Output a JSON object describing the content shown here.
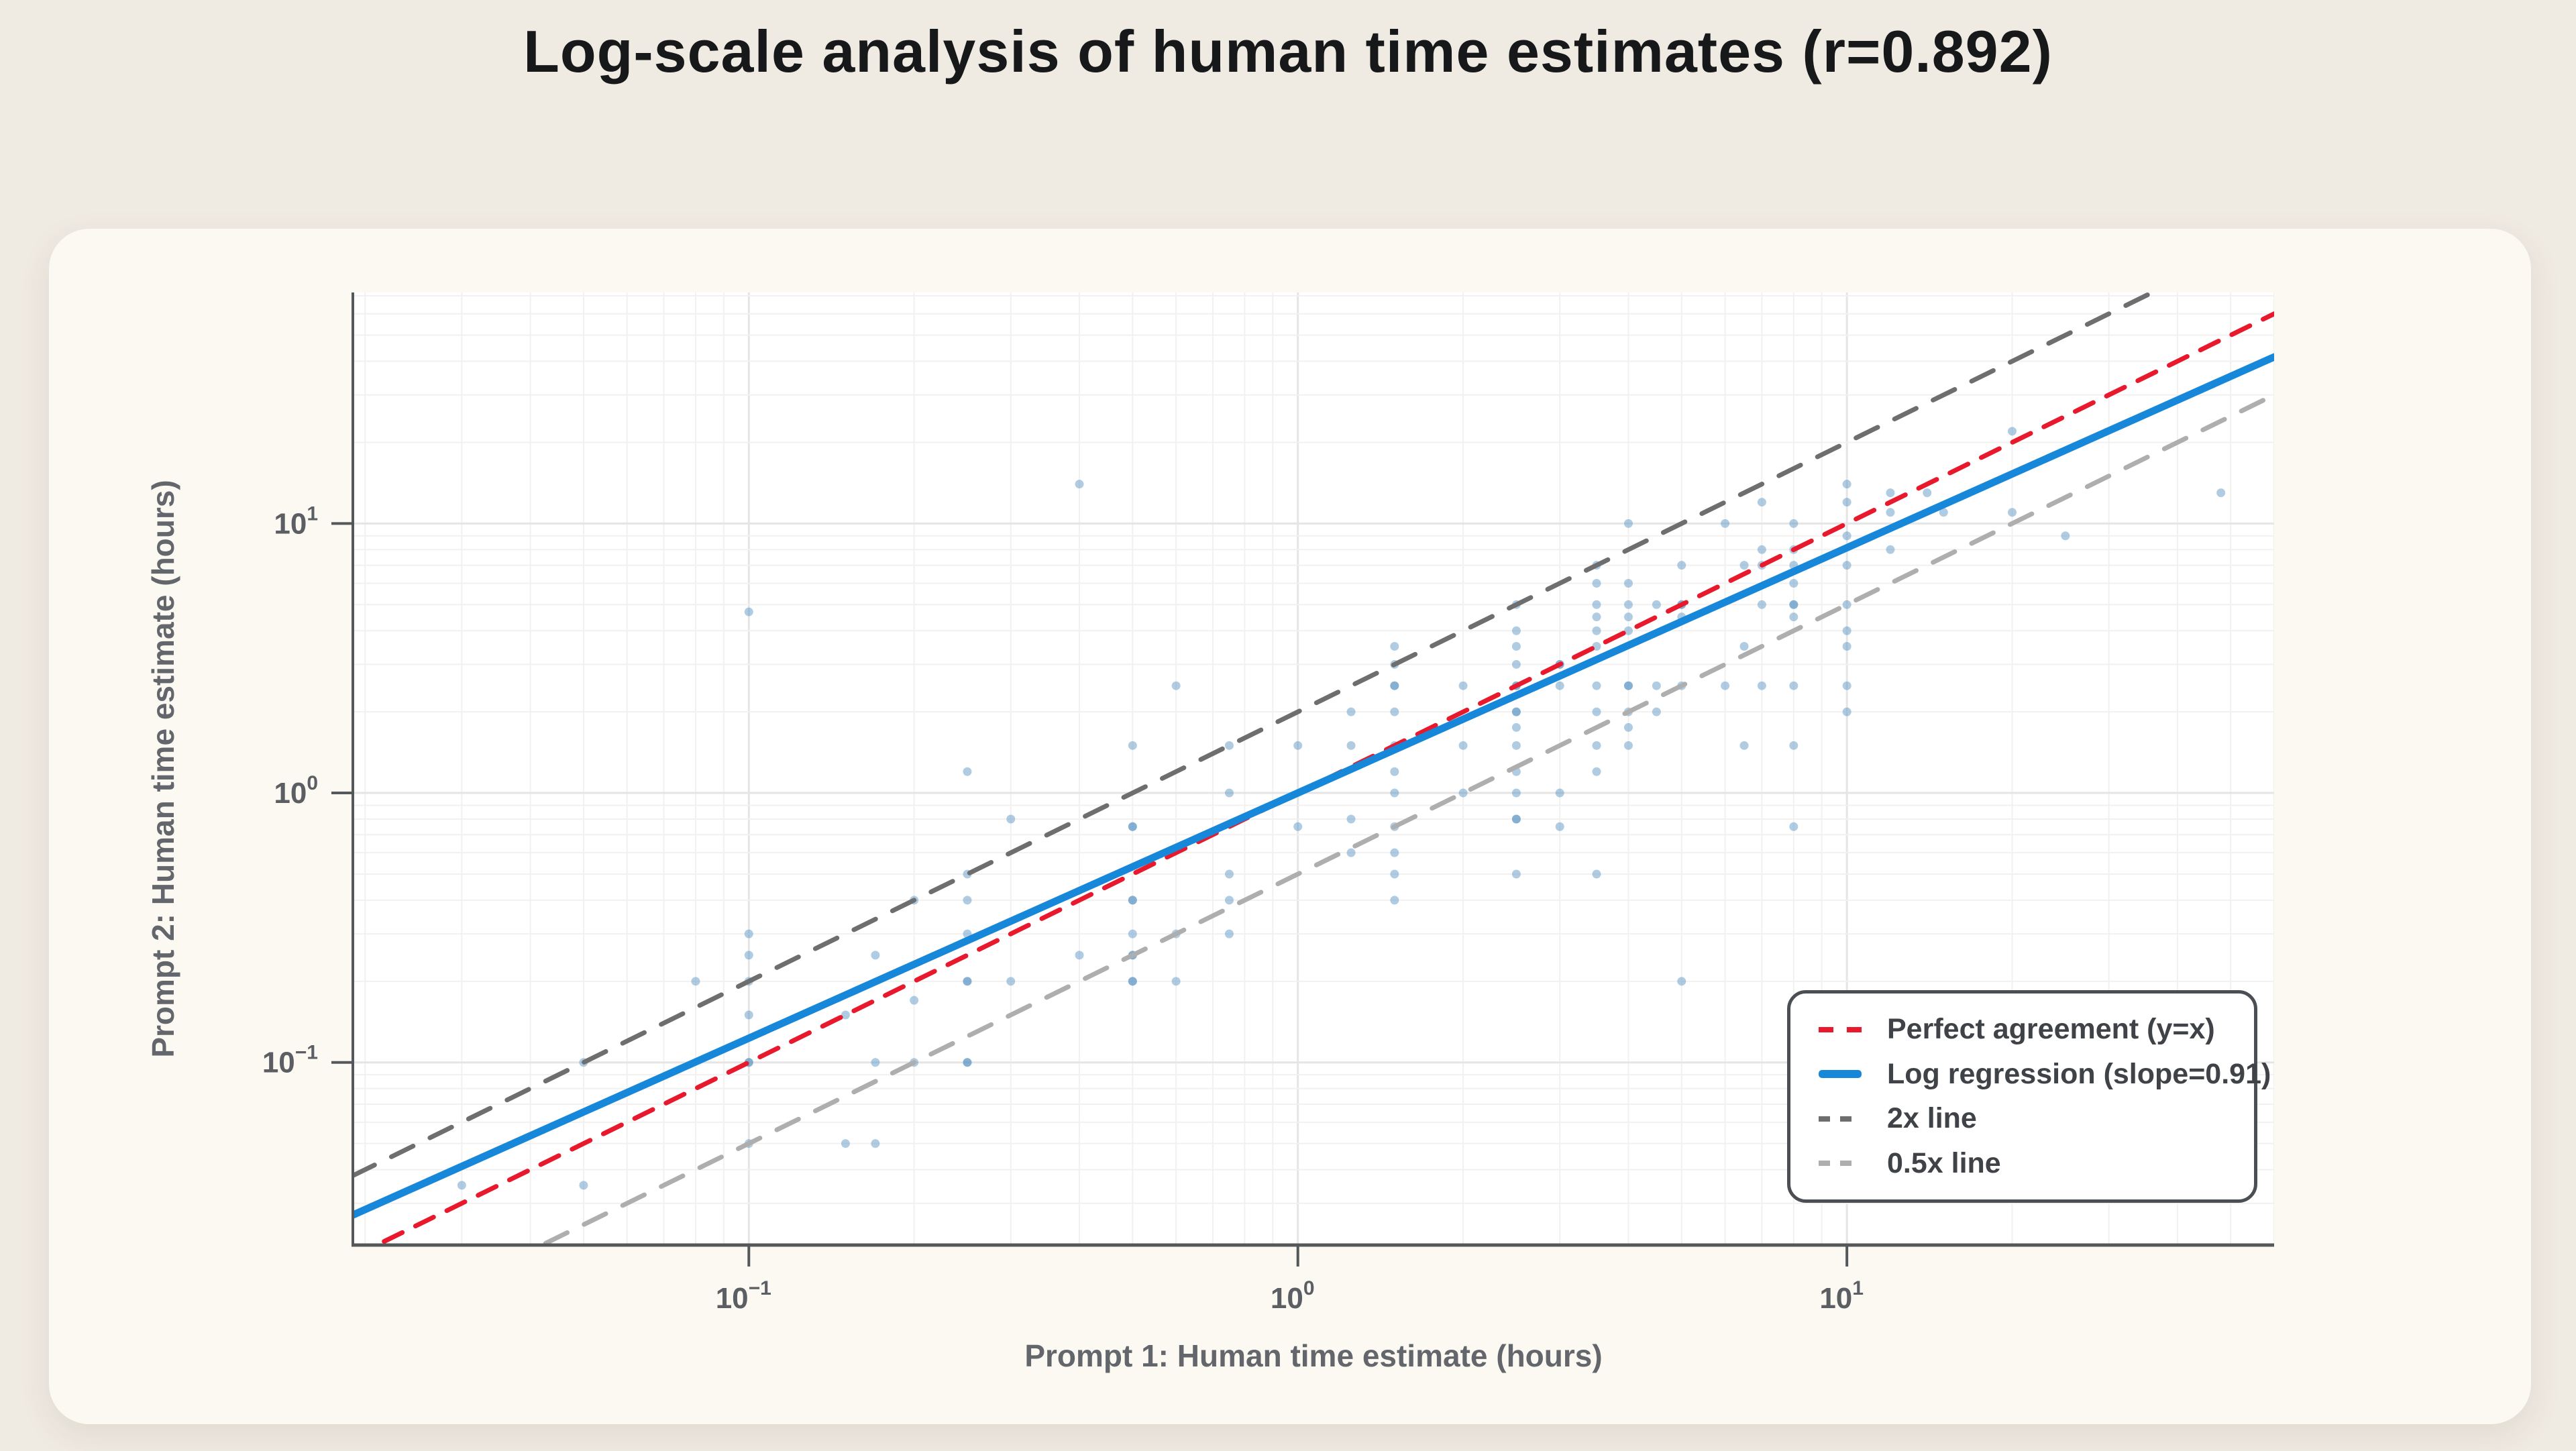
{
  "title": "Log-scale analysis of human time estimates (r=0.892)",
  "chart_data": {
    "type": "scatter",
    "title": "Log-scale analysis of human time estimates (r=0.892)",
    "xlabel": "Prompt 1: Human time estimate (hours)",
    "ylabel": "Prompt 2: Human time estimate (hours)",
    "x_scale": "log",
    "y_scale": "log",
    "xlim": [
      0.019,
      60
    ],
    "ylim": [
      0.021,
      72
    ],
    "x_tick_exponents": [
      -1,
      0,
      1
    ],
    "y_tick_exponents": [
      -1,
      0,
      1
    ],
    "grid": true,
    "correlation_r": 0.892,
    "regression_slope": 0.91,
    "point_style": {
      "color": "#4F8DC2",
      "opacity": 0.45,
      "radius": 6.5
    },
    "legend_position": "lower right",
    "lines": [
      {
        "name": "perfect-agreement",
        "label": "Perfect agreement (y=x)",
        "type": "proportional",
        "k": 1,
        "color": "#E8192C",
        "dash": "30,22",
        "width": 7
      },
      {
        "name": "log-regression",
        "label": "Log regression (slope=0.91)",
        "type": "power",
        "slope": 0.91,
        "intercept": 0,
        "color": "#1787D9",
        "dash": null,
        "width": 11
      },
      {
        "name": "2x-line",
        "label": "2x line",
        "type": "proportional",
        "k": 2,
        "color": "#6E6E6E",
        "dash": "36,28",
        "width": 7
      },
      {
        "name": "half-x-line",
        "label": "0.5x line",
        "type": "proportional",
        "k": 0.5,
        "color": "#AEAEAE",
        "dash": "36,28",
        "width": 7
      }
    ],
    "points": [
      [
        0.03,
        0.035
      ],
      [
        0.05,
        0.035
      ],
      [
        0.05,
        0.1
      ],
      [
        0.08,
        0.2
      ],
      [
        0.1,
        0.05
      ],
      [
        0.1,
        0.1
      ],
      [
        0.1,
        0.1
      ],
      [
        0.1,
        0.15
      ],
      [
        0.1,
        0.2
      ],
      [
        0.1,
        0.25
      ],
      [
        0.1,
        0.3
      ],
      [
        0.1,
        4.7
      ],
      [
        0.15,
        0.05
      ],
      [
        0.15,
        0.15
      ],
      [
        0.17,
        0.05
      ],
      [
        0.17,
        0.1
      ],
      [
        0.17,
        0.25
      ],
      [
        0.2,
        0.1
      ],
      [
        0.2,
        0.17
      ],
      [
        0.2,
        0.4
      ],
      [
        0.25,
        0.1
      ],
      [
        0.25,
        0.1
      ],
      [
        0.25,
        0.2
      ],
      [
        0.25,
        0.2
      ],
      [
        0.25,
        0.3
      ],
      [
        0.25,
        0.4
      ],
      [
        0.25,
        0.5
      ],
      [
        0.25,
        1.2
      ],
      [
        0.3,
        0.2
      ],
      [
        0.3,
        0.8
      ],
      [
        0.4,
        0.25
      ],
      [
        0.4,
        14
      ],
      [
        0.5,
        0.2
      ],
      [
        0.5,
        0.2
      ],
      [
        0.5,
        0.25
      ],
      [
        0.5,
        0.25
      ],
      [
        0.5,
        0.3
      ],
      [
        0.5,
        0.4
      ],
      [
        0.5,
        0.4
      ],
      [
        0.5,
        0.75
      ],
      [
        0.5,
        0.75
      ],
      [
        0.5,
        1.5
      ],
      [
        0.6,
        0.2
      ],
      [
        0.6,
        0.3
      ],
      [
        0.6,
        2.5
      ],
      [
        0.75,
        0.3
      ],
      [
        0.75,
        0.4
      ],
      [
        0.75,
        0.5
      ],
      [
        0.75,
        1
      ],
      [
        0.75,
        1.5
      ],
      [
        1,
        0.75
      ],
      [
        1,
        1.5
      ],
      [
        1.25,
        0.6
      ],
      [
        1.25,
        0.8
      ],
      [
        1.25,
        1.5
      ],
      [
        1.25,
        2
      ],
      [
        1.5,
        0.4
      ],
      [
        1.5,
        0.5
      ],
      [
        1.5,
        0.6
      ],
      [
        1.5,
        0.75
      ],
      [
        1.5,
        1
      ],
      [
        1.5,
        1.2
      ],
      [
        1.5,
        1.5
      ],
      [
        1.5,
        2
      ],
      [
        1.5,
        2.5
      ],
      [
        1.5,
        2.5
      ],
      [
        1.5,
        3
      ],
      [
        1.5,
        3.5
      ],
      [
        2,
        1
      ],
      [
        2,
        1.5
      ],
      [
        2,
        2.5
      ],
      [
        2.5,
        0.5
      ],
      [
        2.5,
        0.8
      ],
      [
        2.5,
        0.8
      ],
      [
        2.5,
        1
      ],
      [
        2.5,
        1.2
      ],
      [
        2.5,
        1.5
      ],
      [
        2.5,
        1.75
      ],
      [
        2.5,
        2
      ],
      [
        2.5,
        2
      ],
      [
        2.5,
        2.5
      ],
      [
        2.5,
        2.5
      ],
      [
        2.5,
        3
      ],
      [
        2.5,
        3.5
      ],
      [
        2.5,
        4
      ],
      [
        2.5,
        5
      ],
      [
        3,
        0.75
      ],
      [
        3,
        1
      ],
      [
        3,
        2.5
      ],
      [
        3,
        3
      ],
      [
        3,
        3
      ],
      [
        3.5,
        0.5
      ],
      [
        3.5,
        1.2
      ],
      [
        3.5,
        1.5
      ],
      [
        3.5,
        2
      ],
      [
        3.5,
        2.5
      ],
      [
        3.5,
        3.5
      ],
      [
        3.5,
        4
      ],
      [
        3.5,
        4.5
      ],
      [
        3.5,
        5
      ],
      [
        3.5,
        6
      ],
      [
        3.5,
        7
      ],
      [
        4,
        1.5
      ],
      [
        4,
        1.75
      ],
      [
        4,
        2
      ],
      [
        4,
        2.5
      ],
      [
        4,
        2.5
      ],
      [
        4,
        4
      ],
      [
        4,
        4.5
      ],
      [
        4,
        5
      ],
      [
        4,
        6
      ],
      [
        4,
        10
      ],
      [
        4.5,
        2
      ],
      [
        4.5,
        2.5
      ],
      [
        4.5,
        5
      ],
      [
        5,
        0.2
      ],
      [
        5,
        2.5
      ],
      [
        5,
        4.5
      ],
      [
        5,
        5
      ],
      [
        5,
        5
      ],
      [
        5,
        7
      ],
      [
        6,
        2.5
      ],
      [
        6,
        10
      ],
      [
        6.5,
        1.5
      ],
      [
        6.5,
        3.5
      ],
      [
        6.5,
        7
      ],
      [
        7,
        2.5
      ],
      [
        7,
        5
      ],
      [
        7,
        7
      ],
      [
        7,
        8
      ],
      [
        7,
        12
      ],
      [
        8,
        0.75
      ],
      [
        8,
        1.5
      ],
      [
        8,
        2.5
      ],
      [
        8,
        4.5
      ],
      [
        8,
        5
      ],
      [
        8,
        5
      ],
      [
        8,
        6
      ],
      [
        8,
        7
      ],
      [
        8,
        8
      ],
      [
        8,
        10
      ],
      [
        10,
        2
      ],
      [
        10,
        2.5
      ],
      [
        10,
        3.5
      ],
      [
        10,
        4
      ],
      [
        10,
        5
      ],
      [
        10,
        7
      ],
      [
        10,
        9
      ],
      [
        10,
        12
      ],
      [
        10,
        14
      ],
      [
        12,
        8
      ],
      [
        12,
        11
      ],
      [
        12,
        13
      ],
      [
        14,
        13
      ],
      [
        15,
        11
      ],
      [
        20,
        11
      ],
      [
        20,
        22
      ],
      [
        25,
        9
      ],
      [
        48,
        13
      ]
    ]
  },
  "colors": {
    "page_bg": "#EFEAE2",
    "card_bg": "#FBF9F2",
    "plot_bg": "#FFFFFF",
    "grid_major": "#E5E5E5",
    "grid_minor": "#F2F1F0",
    "spine": "#55585A",
    "tick_label": "#5B5F63",
    "axis_label": "#63676B",
    "legend_border": "#4B4F54",
    "legend_text": "#3F4347",
    "title_text": "#17181A",
    "accent_blue": "#1787D9",
    "accent_red": "#E8192C"
  }
}
